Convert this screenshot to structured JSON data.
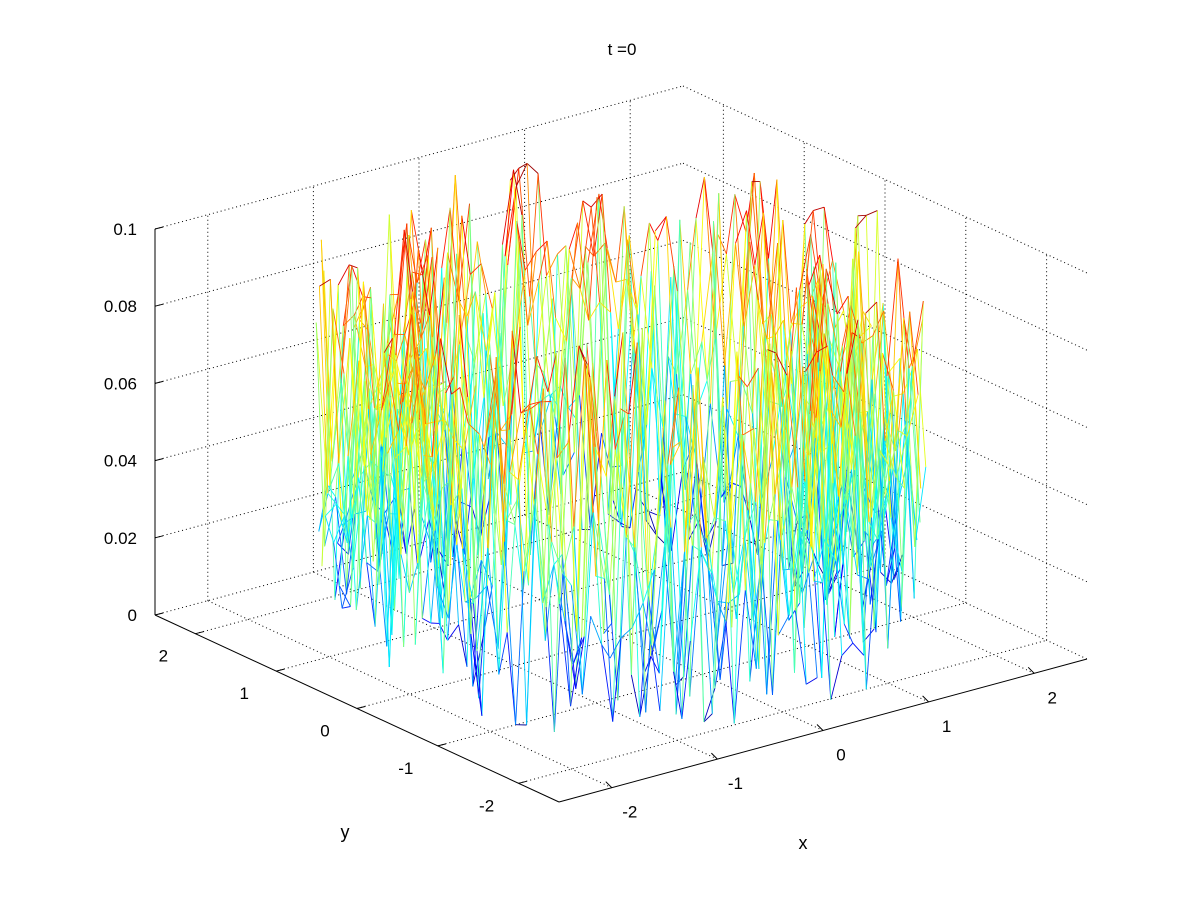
{
  "chart_data": {
    "type": "mesh3d",
    "title": "t =0",
    "xlabel": "x",
    "ylabel": "y",
    "zlabel": "",
    "xlim": [
      -2.5,
      2.5
    ],
    "ylim": [
      -2.5,
      2.5
    ],
    "zlim": [
      0,
      0.1
    ],
    "xticks": [
      -2,
      -1,
      0,
      1,
      2
    ],
    "yticks": [
      -2,
      -1,
      0,
      1,
      2
    ],
    "zticks": [
      0,
      0.02,
      0.04,
      0.06,
      0.08,
      0.1
    ],
    "xtick_labels": [
      "-2",
      "-1",
      "0",
      "1",
      "2"
    ],
    "ytick_labels": [
      "-2",
      "-1",
      "0",
      "1",
      "2"
    ],
    "ztick_labels": [
      "0",
      "0.02",
      "0.04",
      "0.06",
      "0.08",
      "0.1"
    ],
    "grid": true,
    "colormap": "jet",
    "surface": {
      "description_level": "noisy annular ring surface",
      "inner_radius": 1.4,
      "outer_radius": 2.3,
      "z_min": 0,
      "z_max": 0.1
    }
  }
}
